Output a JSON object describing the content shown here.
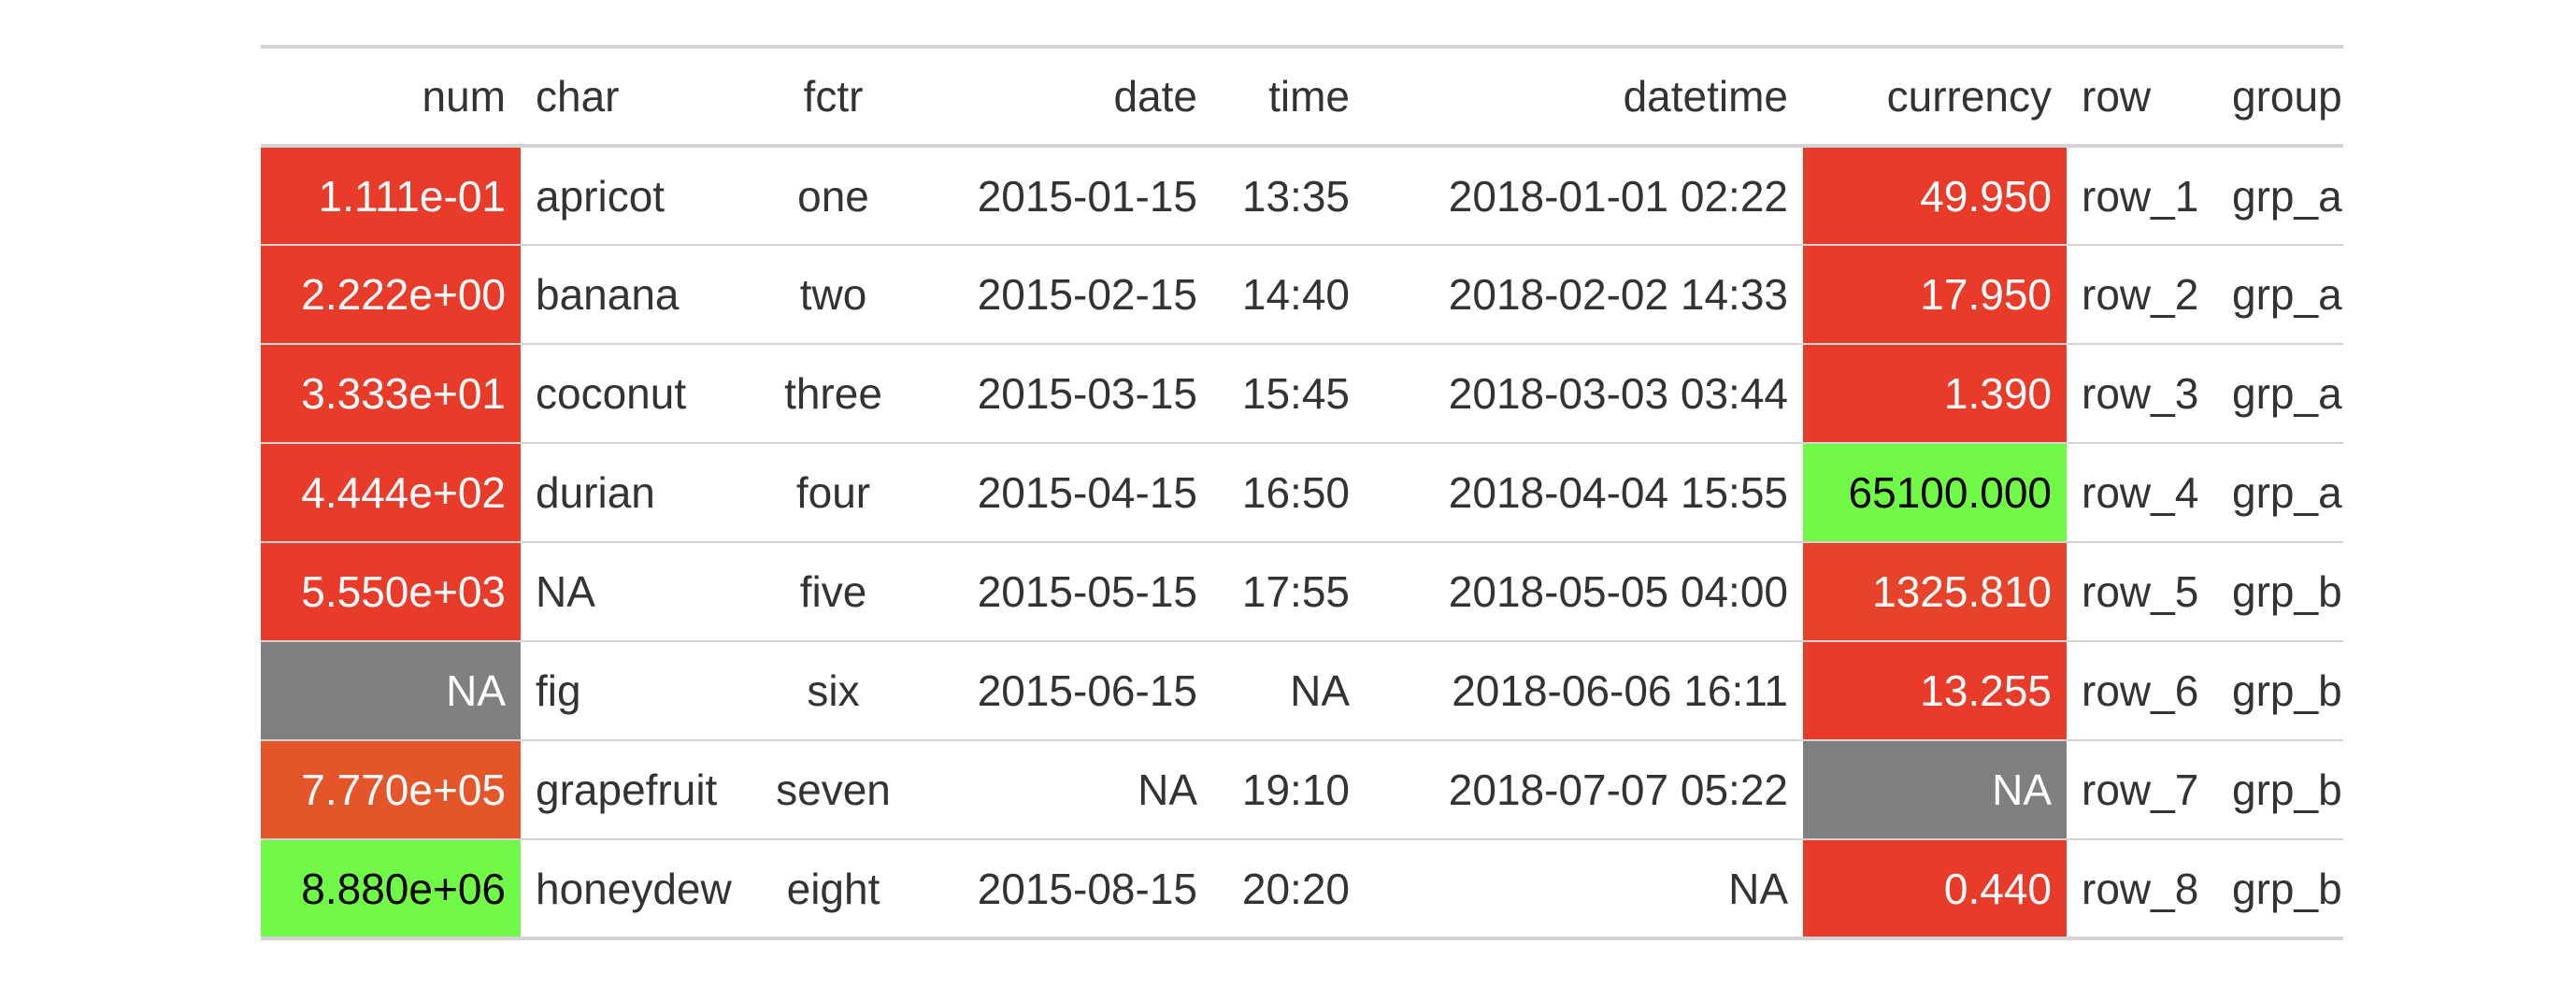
{
  "columns": [
    {
      "key": "num",
      "label": "num",
      "align": "right"
    },
    {
      "key": "char",
      "label": "char",
      "align": "left"
    },
    {
      "key": "fctr",
      "label": "fctr",
      "align": "center"
    },
    {
      "key": "date",
      "label": "date",
      "align": "right"
    },
    {
      "key": "time",
      "label": "time",
      "align": "right"
    },
    {
      "key": "datetime",
      "label": "datetime",
      "align": "right"
    },
    {
      "key": "currency",
      "label": "currency",
      "align": "right"
    },
    {
      "key": "row",
      "label": "row",
      "align": "left"
    },
    {
      "key": "group",
      "label": "group",
      "align": "left"
    }
  ],
  "rows": [
    {
      "num": "1.111e-01",
      "char": "apricot",
      "fctr": "one",
      "date": "2015-01-15",
      "time": "13:35",
      "datetime": "2018-01-01 02:22",
      "currency": "49.950",
      "row": "row_1",
      "group": "grp_a"
    },
    {
      "num": "2.222e+00",
      "char": "banana",
      "fctr": "two",
      "date": "2015-02-15",
      "time": "14:40",
      "datetime": "2018-02-02 14:33",
      "currency": "17.950",
      "row": "row_2",
      "group": "grp_a"
    },
    {
      "num": "3.333e+01",
      "char": "coconut",
      "fctr": "three",
      "date": "2015-03-15",
      "time": "15:45",
      "datetime": "2018-03-03 03:44",
      "currency": "1.390",
      "row": "row_3",
      "group": "grp_a"
    },
    {
      "num": "4.444e+02",
      "char": "durian",
      "fctr": "four",
      "date": "2015-04-15",
      "time": "16:50",
      "datetime": "2018-04-04 15:55",
      "currency": "65100.000",
      "row": "row_4",
      "group": "grp_a"
    },
    {
      "num": "5.550e+03",
      "char": "NA",
      "fctr": "five",
      "date": "2015-05-15",
      "time": "17:55",
      "datetime": "2018-05-05 04:00",
      "currency": "1325.810",
      "row": "row_5",
      "group": "grp_b"
    },
    {
      "num": "NA",
      "char": "fig",
      "fctr": "six",
      "date": "2015-06-15",
      "time": "NA",
      "datetime": "2018-06-06 16:11",
      "currency": "13.255",
      "row": "row_6",
      "group": "grp_b"
    },
    {
      "num": "7.770e+05",
      "char": "grapefruit",
      "fctr": "seven",
      "date": "NA",
      "time": "19:10",
      "datetime": "2018-07-07 05:22",
      "currency": "NA",
      "row": "row_7",
      "group": "grp_b"
    },
    {
      "num": "8.880e+06",
      "char": "honeydew",
      "fctr": "eight",
      "date": "2015-08-15",
      "time": "20:20",
      "datetime": "NA",
      "currency": "0.440",
      "row": "row_8",
      "group": "grp_b"
    }
  ],
  "cell_fills": {
    "num": [
      {
        "bg": "#E83B2A",
        "fg": "#FFFFFF"
      },
      {
        "bg": "#E83B2A",
        "fg": "#FFFFFF"
      },
      {
        "bg": "#E83B2A",
        "fg": "#FFFFFF"
      },
      {
        "bg": "#E83B2A",
        "fg": "#FFFFFF"
      },
      {
        "bg": "#E83B2A",
        "fg": "#FFFFFF"
      },
      {
        "bg": "#808080",
        "fg": "#FFFFFF"
      },
      {
        "bg": "#E5552A",
        "fg": "#FFFFFF"
      },
      {
        "bg": "#70FA47",
        "fg": "#000000"
      }
    ],
    "currency": [
      {
        "bg": "#E83B2A",
        "fg": "#FFFFFF"
      },
      {
        "bg": "#E83B2A",
        "fg": "#FFFFFF"
      },
      {
        "bg": "#E83B2A",
        "fg": "#FFFFFF"
      },
      {
        "bg": "#70FA47",
        "fg": "#000000"
      },
      {
        "bg": "#E6432A",
        "fg": "#FFFFFF"
      },
      {
        "bg": "#E83B2A",
        "fg": "#FFFFFF"
      },
      {
        "bg": "#808080",
        "fg": "#FFFFFF"
      },
      {
        "bg": "#E83B2A",
        "fg": "#FFFFFF"
      }
    ]
  }
}
